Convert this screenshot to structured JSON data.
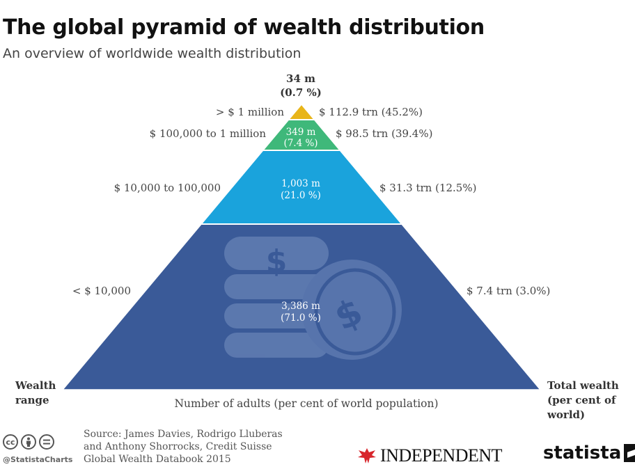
{
  "header": {
    "title": "The global pyramid of wealth distribution",
    "subtitle": "An overview of worldwide wealth distribution"
  },
  "chart_data": {
    "type": "pyramid",
    "title": "The global pyramid of wealth distribution",
    "subtitle": "An overview of worldwide wealth distribution",
    "top_count": "34 m",
    "top_share": "(0.7 %)",
    "tiers": [
      {
        "range": "> $ 1 million",
        "adults_label": "34 m",
        "adults_share_label": "(0.7 %)",
        "adults_millions": 34,
        "adults_percent": 0.7,
        "wealth_label": "$ 112.9 trn (45.2%)",
        "wealth_trn": 112.9,
        "wealth_percent": 45.2,
        "color": "#e8b51a"
      },
      {
        "range": "$ 100,000 to 1 million",
        "adults_label": "349 m",
        "adults_share_label": "(7.4 %)",
        "adults_millions": 349,
        "adults_percent": 7.4,
        "wealth_label": "$ 98.5 trn (39.4%)",
        "wealth_trn": 98.5,
        "wealth_percent": 39.4,
        "color": "#3fb87a"
      },
      {
        "range": "$ 10,000 to 100,000",
        "adults_label": "1,003 m",
        "adults_share_label": "(21.0 %)",
        "adults_millions": 1003,
        "adults_percent": 21.0,
        "wealth_label": "$ 31.3 trn (12.5%)",
        "wealth_trn": 31.3,
        "wealth_percent": 12.5,
        "color": "#1aa3dc"
      },
      {
        "range": "< $ 10,000",
        "adults_label": "3,386 m",
        "adults_share_label": "(71.0 %)",
        "adults_millions": 3386,
        "adults_percent": 71.0,
        "wealth_label": "$ 7.4 trn (3.0%)",
        "wealth_trn": 7.4,
        "wealth_percent": 3.0,
        "color": "#3a5a98"
      }
    ],
    "left_axis_label": "Wealth range",
    "right_axis_label": "Total wealth (per cent of world)",
    "bottom_label": "Number of adults (per cent of world population)",
    "xlabel": "Number of adults (per cent of world population)"
  },
  "left_axis": {
    "line1": "Wealth",
    "line2": "range"
  },
  "right_axis": {
    "line1": "Total wealth",
    "line2": "(per cent of",
    "line3": "world)"
  },
  "footer": {
    "credit": "@StatistaCharts",
    "source_line1": "Source: James Davies, Rodrigo Lluberas",
    "source_line2": "and Anthony Shorrocks, Credit Suisse",
    "source_line3": "Global Wealth Databook 2015",
    "independent": "INDEPENDENT",
    "statista": "statista",
    "cc_icons": [
      "cc-icon",
      "attribution-icon",
      "no-derivatives-icon"
    ]
  }
}
